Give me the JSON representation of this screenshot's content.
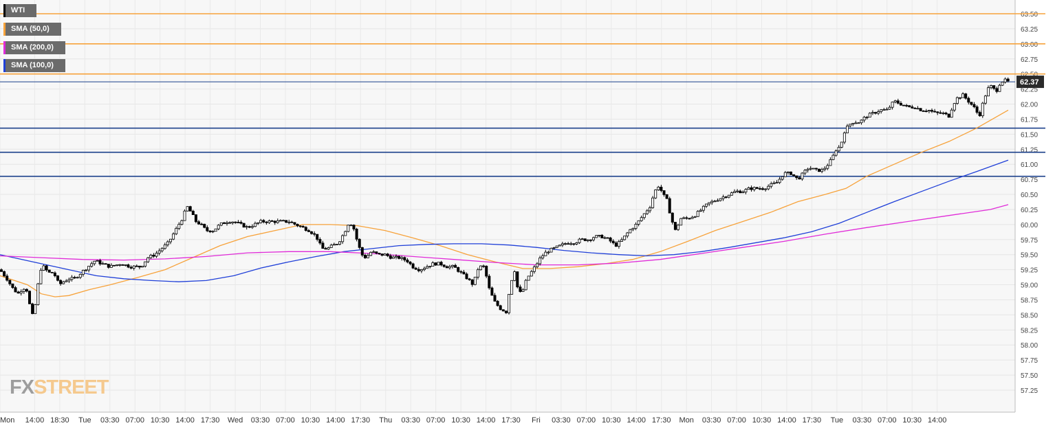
{
  "chart_data": {
    "type": "candlestick",
    "symbol": "WTI",
    "y_range": [
      57.0,
      63.6
    ],
    "y_ticks": [
      "63.50",
      "63.25",
      "63.00",
      "62.75",
      "62.50",
      "62.25",
      "62.00",
      "61.75",
      "61.50",
      "61.25",
      "61.00",
      "60.75",
      "60.50",
      "60.25",
      "60.00",
      "59.75",
      "59.50",
      "59.25",
      "59.00",
      "58.75",
      "58.50",
      "58.25",
      "58.00",
      "57.75",
      "57.50",
      "57.25"
    ],
    "x_ticks": [
      "Mon",
      "14:00",
      "18:30",
      "Tue",
      "03:30",
      "07:00",
      "10:30",
      "14:00",
      "17:30",
      "Wed",
      "03:30",
      "07:00",
      "10:30",
      "14:00",
      "17:30",
      "Thu",
      "03:30",
      "07:00",
      "10:30",
      "14:00",
      "17:30",
      "Fri",
      "03:30",
      "07:00",
      "10:30",
      "14:00",
      "17:30",
      "Mon",
      "03:30",
      "07:00",
      "10:30",
      "14:00",
      "17:30",
      "Tue",
      "03:30",
      "07:00",
      "10:30",
      "14:00"
    ],
    "last_price": 62.37,
    "last_price_label": "62.37",
    "candle_close_path": [
      [
        0,
        59.25
      ],
      [
        10,
        59.1
      ],
      [
        18,
        58.95
      ],
      [
        26,
        58.85
      ],
      [
        34,
        58.95
      ],
      [
        40,
        58.9
      ],
      [
        46,
        58.45
      ],
      [
        52,
        58.7
      ],
      [
        58,
        59.25
      ],
      [
        64,
        59.3
      ],
      [
        70,
        59.2
      ],
      [
        78,
        59.2
      ],
      [
        86,
        59.0
      ],
      [
        92,
        59.05
      ],
      [
        100,
        59.1
      ],
      [
        108,
        59.1
      ],
      [
        118,
        59.2
      ],
      [
        128,
        59.3
      ],
      [
        138,
        59.4
      ],
      [
        148,
        59.35
      ],
      [
        160,
        59.3
      ],
      [
        175,
        59.35
      ],
      [
        190,
        59.3
      ],
      [
        205,
        59.3
      ],
      [
        215,
        59.45
      ],
      [
        225,
        59.5
      ],
      [
        235,
        59.6
      ],
      [
        245,
        59.7
      ],
      [
        255,
        59.9
      ],
      [
        265,
        60.1
      ],
      [
        272,
        60.3
      ],
      [
        278,
        60.2
      ],
      [
        285,
        60.05
      ],
      [
        292,
        60.0
      ],
      [
        300,
        59.9
      ],
      [
        310,
        59.9
      ],
      [
        320,
        60.0
      ],
      [
        330,
        60.05
      ],
      [
        340,
        60.05
      ],
      [
        350,
        60.0
      ],
      [
        360,
        59.95
      ],
      [
        370,
        60.0
      ],
      [
        380,
        60.05
      ],
      [
        390,
        60.05
      ],
      [
        400,
        60.05
      ],
      [
        410,
        60.05
      ],
      [
        420,
        60.05
      ],
      [
        430,
        60.0
      ],
      [
        440,
        59.95
      ],
      [
        450,
        59.9
      ],
      [
        460,
        59.8
      ],
      [
        468,
        59.6
      ],
      [
        476,
        59.6
      ],
      [
        484,
        59.65
      ],
      [
        492,
        59.7
      ],
      [
        500,
        59.85
      ],
      [
        508,
        60.05
      ],
      [
        514,
        59.95
      ],
      [
        520,
        59.7
      ],
      [
        526,
        59.5
      ],
      [
        532,
        59.45
      ],
      [
        540,
        59.55
      ],
      [
        550,
        59.5
      ],
      [
        560,
        59.5
      ],
      [
        570,
        59.45
      ],
      [
        580,
        59.45
      ],
      [
        592,
        59.4
      ],
      [
        600,
        59.3
      ],
      [
        610,
        59.25
      ],
      [
        620,
        59.3
      ],
      [
        630,
        59.35
      ],
      [
        640,
        59.35
      ],
      [
        650,
        59.3
      ],
      [
        660,
        59.3
      ],
      [
        670,
        59.2
      ],
      [
        680,
        59.1
      ],
      [
        688,
        59.0
      ],
      [
        696,
        59.3
      ],
      [
        704,
        59.3
      ],
      [
        712,
        58.9
      ],
      [
        720,
        58.7
      ],
      [
        728,
        58.6
      ],
      [
        736,
        58.55
      ],
      [
        742,
        59.0
      ],
      [
        748,
        59.25
      ],
      [
        754,
        58.85
      ],
      [
        760,
        58.9
      ],
      [
        766,
        59.1
      ],
      [
        772,
        59.2
      ],
      [
        778,
        59.3
      ],
      [
        786,
        59.45
      ],
      [
        795,
        59.55
      ],
      [
        805,
        59.6
      ],
      [
        815,
        59.65
      ],
      [
        825,
        59.7
      ],
      [
        835,
        59.7
      ],
      [
        845,
        59.75
      ],
      [
        855,
        59.75
      ],
      [
        865,
        59.8
      ],
      [
        875,
        59.8
      ],
      [
        885,
        59.75
      ],
      [
        895,
        59.65
      ],
      [
        905,
        59.75
      ],
      [
        915,
        59.9
      ],
      [
        925,
        60.0
      ],
      [
        935,
        60.15
      ],
      [
        945,
        60.3
      ],
      [
        952,
        60.55
      ],
      [
        958,
        60.65
      ],
      [
        964,
        60.5
      ],
      [
        970,
        60.4
      ],
      [
        976,
        60.1
      ],
      [
        982,
        59.9
      ],
      [
        990,
        60.1
      ],
      [
        1000,
        60.1
      ],
      [
        1010,
        60.15
      ],
      [
        1020,
        60.25
      ],
      [
        1030,
        60.35
      ],
      [
        1040,
        60.4
      ],
      [
        1050,
        60.45
      ],
      [
        1060,
        60.5
      ],
      [
        1070,
        60.55
      ],
      [
        1080,
        60.55
      ],
      [
        1090,
        60.6
      ],
      [
        1100,
        60.6
      ],
      [
        1110,
        60.6
      ],
      [
        1120,
        60.65
      ],
      [
        1130,
        60.7
      ],
      [
        1140,
        60.85
      ],
      [
        1150,
        60.85
      ],
      [
        1160,
        60.75
      ],
      [
        1168,
        60.85
      ],
      [
        1176,
        60.95
      ],
      [
        1186,
        60.9
      ],
      [
        1196,
        60.9
      ],
      [
        1204,
        61.0
      ],
      [
        1210,
        61.1
      ],
      [
        1216,
        61.25
      ],
      [
        1222,
        61.3
      ],
      [
        1228,
        61.55
      ],
      [
        1234,
        61.65
      ],
      [
        1240,
        61.7
      ],
      [
        1250,
        61.7
      ],
      [
        1260,
        61.8
      ],
      [
        1270,
        61.85
      ],
      [
        1280,
        61.9
      ],
      [
        1290,
        61.9
      ],
      [
        1300,
        62.05
      ],
      [
        1310,
        62.0
      ],
      [
        1320,
        61.95
      ],
      [
        1330,
        61.95
      ],
      [
        1340,
        61.9
      ],
      [
        1350,
        61.9
      ],
      [
        1360,
        61.85
      ],
      [
        1370,
        61.85
      ],
      [
        1380,
        61.8
      ],
      [
        1386,
        62.0
      ],
      [
        1392,
        62.1
      ],
      [
        1400,
        62.15
      ],
      [
        1408,
        62.05
      ],
      [
        1416,
        61.95
      ],
      [
        1424,
        61.8
      ],
      [
        1430,
        62.05
      ],
      [
        1436,
        62.25
      ],
      [
        1442,
        62.3
      ],
      [
        1448,
        62.2
      ],
      [
        1454,
        62.35
      ],
      [
        1460,
        62.4
      ],
      [
        1466,
        62.37
      ]
    ],
    "series": [
      {
        "name": "SMA (50,0)",
        "color": "#f7a23a",
        "path": [
          [
            0,
            59.15
          ],
          [
            40,
            59.0
          ],
          [
            60,
            58.85
          ],
          [
            80,
            58.8
          ],
          [
            100,
            58.82
          ],
          [
            130,
            58.92
          ],
          [
            160,
            59.0
          ],
          [
            200,
            59.12
          ],
          [
            240,
            59.25
          ],
          [
            280,
            59.45
          ],
          [
            320,
            59.65
          ],
          [
            360,
            59.8
          ],
          [
            400,
            59.9
          ],
          [
            440,
            60.0
          ],
          [
            480,
            60.0
          ],
          [
            520,
            59.98
          ],
          [
            560,
            59.9
          ],
          [
            600,
            59.78
          ],
          [
            640,
            59.65
          ],
          [
            680,
            59.5
          ],
          [
            720,
            59.38
          ],
          [
            760,
            59.27
          ],
          [
            800,
            59.27
          ],
          [
            840,
            59.3
          ],
          [
            880,
            59.35
          ],
          [
            920,
            59.42
          ],
          [
            960,
            59.55
          ],
          [
            1000,
            59.72
          ],
          [
            1040,
            59.9
          ],
          [
            1080,
            60.05
          ],
          [
            1120,
            60.2
          ],
          [
            1160,
            60.38
          ],
          [
            1200,
            60.5
          ],
          [
            1230,
            60.6
          ],
          [
            1260,
            60.8
          ],
          [
            1300,
            61.0
          ],
          [
            1340,
            61.2
          ],
          [
            1380,
            61.38
          ],
          [
            1420,
            61.6
          ],
          [
            1466,
            61.9
          ]
        ]
      },
      {
        "name": "SMA (100,0)",
        "color": "#1f3fd8",
        "path": [
          [
            0,
            59.5
          ],
          [
            60,
            59.35
          ],
          [
            100,
            59.25
          ],
          [
            140,
            59.15
          ],
          [
            180,
            59.1
          ],
          [
            220,
            59.07
          ],
          [
            260,
            59.05
          ],
          [
            300,
            59.07
          ],
          [
            340,
            59.15
          ],
          [
            380,
            59.28
          ],
          [
            420,
            59.38
          ],
          [
            460,
            59.47
          ],
          [
            500,
            59.55
          ],
          [
            540,
            59.6
          ],
          [
            580,
            59.65
          ],
          [
            620,
            59.67
          ],
          [
            660,
            59.68
          ],
          [
            700,
            59.68
          ],
          [
            740,
            59.66
          ],
          [
            780,
            59.62
          ],
          [
            820,
            59.57
          ],
          [
            860,
            59.53
          ],
          [
            900,
            59.5
          ],
          [
            940,
            59.48
          ],
          [
            980,
            59.5
          ],
          [
            1020,
            59.55
          ],
          [
            1060,
            59.62
          ],
          [
            1100,
            59.7
          ],
          [
            1140,
            59.78
          ],
          [
            1180,
            59.88
          ],
          [
            1220,
            60.02
          ],
          [
            1260,
            60.2
          ],
          [
            1300,
            60.38
          ],
          [
            1340,
            60.55
          ],
          [
            1380,
            60.72
          ],
          [
            1420,
            60.88
          ],
          [
            1466,
            61.07
          ]
        ]
      },
      {
        "name": "SMA (200,0)",
        "color": "#e02ad8",
        "path": [
          [
            0,
            59.48
          ],
          [
            60,
            59.45
          ],
          [
            120,
            59.42
          ],
          [
            180,
            59.41
          ],
          [
            240,
            59.43
          ],
          [
            300,
            59.47
          ],
          [
            360,
            59.53
          ],
          [
            420,
            59.55
          ],
          [
            480,
            59.55
          ],
          [
            540,
            59.52
          ],
          [
            600,
            59.47
          ],
          [
            660,
            59.42
          ],
          [
            720,
            59.37
          ],
          [
            780,
            59.33
          ],
          [
            840,
            59.33
          ],
          [
            900,
            59.36
          ],
          [
            960,
            59.42
          ],
          [
            1020,
            59.52
          ],
          [
            1080,
            59.62
          ],
          [
            1140,
            59.72
          ],
          [
            1200,
            59.84
          ],
          [
            1260,
            59.95
          ],
          [
            1320,
            60.05
          ],
          [
            1380,
            60.15
          ],
          [
            1440,
            60.25
          ],
          [
            1466,
            60.33
          ]
        ]
      }
    ],
    "horizontal_levels": [
      {
        "value": 63.5,
        "color": "#f7a23a"
      },
      {
        "value": 63.0,
        "color": "#f7a23a"
      },
      {
        "value": 62.5,
        "color": "#f7a23a"
      },
      {
        "value": 61.6,
        "color": "#1a3f8a"
      },
      {
        "value": 61.2,
        "color": "#1a3f8a"
      },
      {
        "value": 60.8,
        "color": "#1a3f8a"
      }
    ],
    "grid": true,
    "legend_position": "top-left"
  },
  "legend": {
    "items": [
      {
        "label": "WTI",
        "color": "#000000"
      },
      {
        "label": "SMA (50,0)",
        "color": "#f7a23a"
      },
      {
        "label": "SMA (200,0)",
        "color": "#e02ad8"
      },
      {
        "label": "SMA (100,0)",
        "color": "#1f3fd8"
      }
    ]
  },
  "logo": {
    "part1": "FX",
    "part2": "STREET"
  }
}
